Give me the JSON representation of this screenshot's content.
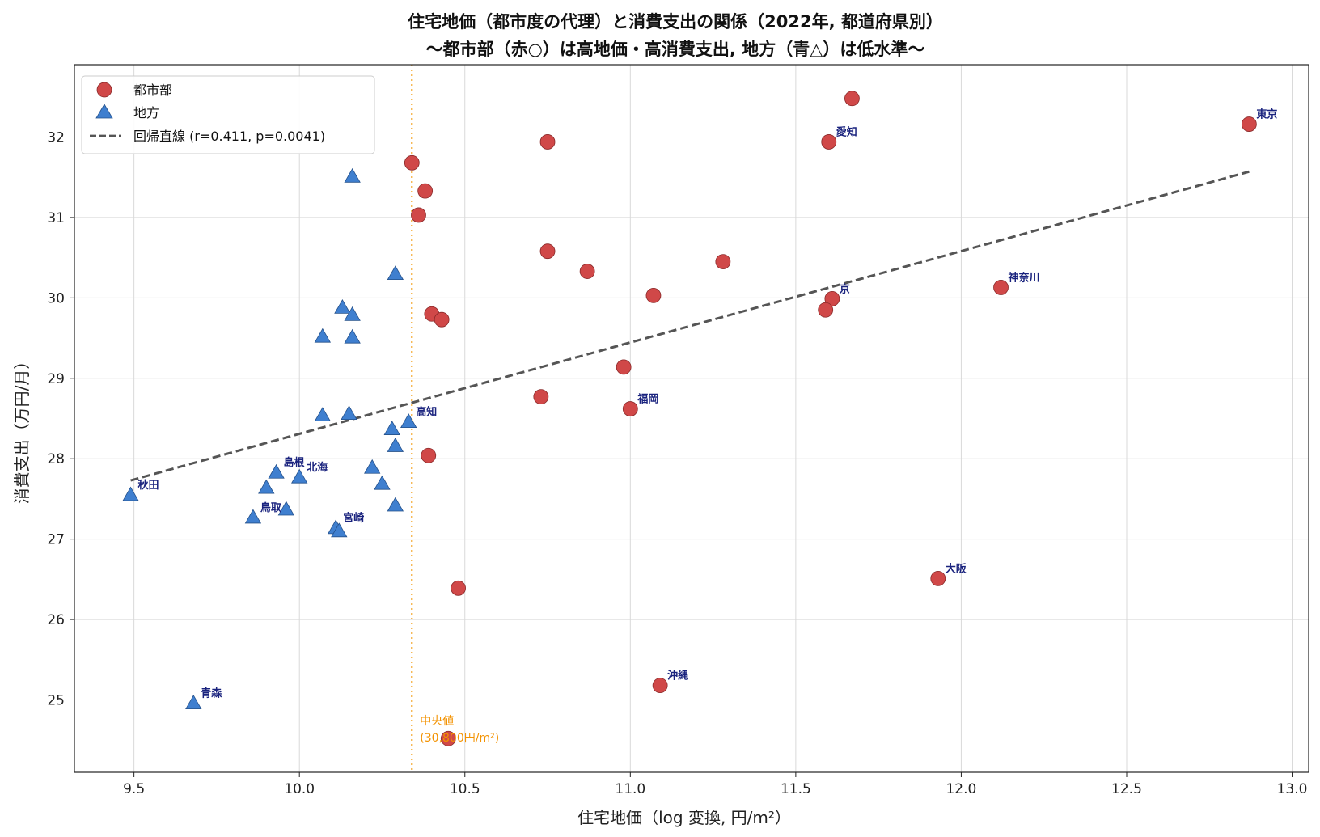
{
  "chart_data": {
    "type": "scatter",
    "title": "住宅地価（都市度の代理）と消費支出の関係（2022年, 都道府県別）",
    "subtitle": "〜都市部（赤○）は高地価・高消費支出, 地方（青△）は低水準〜",
    "xlabel": "住宅地価（log 変換, 円/m²）",
    "ylabel": "消費支出（万円/月）",
    "xlim": [
      9.32,
      13.05
    ],
    "ylim": [
      24.1,
      32.9
    ],
    "xticks": [
      9.5,
      10.0,
      10.5,
      11.0,
      11.5,
      12.0,
      12.5,
      13.0
    ],
    "yticks": [
      25,
      26,
      27,
      28,
      29,
      30,
      31,
      32
    ],
    "xtick_labels": [
      "9.5",
      "10.0",
      "10.5",
      "11.0",
      "11.5",
      "12.0",
      "12.5",
      "13.0"
    ],
    "ytick_labels": [
      "25",
      "26",
      "27",
      "28",
      "29",
      "30",
      "31",
      "32"
    ],
    "grid": true,
    "legend_position": "top-left",
    "colors": {
      "urban": "#d04848",
      "rural": "#3f7fcf",
      "regression": "#555555",
      "median": "#f39c12",
      "label": "#1a237e"
    },
    "series": [
      {
        "name": "都市部",
        "marker": "circle",
        "points": [
          {
            "x": 12.87,
            "y": 32.16,
            "label": "東京"
          },
          {
            "x": 11.67,
            "y": 32.48,
            "label": ""
          },
          {
            "x": 11.6,
            "y": 31.94,
            "label": "愛知"
          },
          {
            "x": 12.12,
            "y": 30.13,
            "label": "神奈川"
          },
          {
            "x": 11.61,
            "y": 29.99,
            "label": "京"
          },
          {
            "x": 11.59,
            "y": 29.85,
            "label": ""
          },
          {
            "x": 11.93,
            "y": 26.51,
            "label": "大阪"
          },
          {
            "x": 11.09,
            "y": 25.18,
            "label": "沖縄"
          },
          {
            "x": 11.0,
            "y": 28.62,
            "label": "福岡"
          },
          {
            "x": 11.28,
            "y": 30.45,
            "label": ""
          },
          {
            "x": 11.07,
            "y": 30.03,
            "label": ""
          },
          {
            "x": 10.98,
            "y": 29.14,
            "label": ""
          },
          {
            "x": 10.87,
            "y": 30.33,
            "label": ""
          },
          {
            "x": 10.75,
            "y": 31.94,
            "label": ""
          },
          {
            "x": 10.75,
            "y": 30.58,
            "label": ""
          },
          {
            "x": 10.73,
            "y": 28.77,
            "label": ""
          },
          {
            "x": 10.48,
            "y": 26.39,
            "label": ""
          },
          {
            "x": 10.45,
            "y": 24.52,
            "label": ""
          },
          {
            "x": 10.34,
            "y": 31.68,
            "label": ""
          },
          {
            "x": 10.38,
            "y": 31.33,
            "label": ""
          },
          {
            "x": 10.36,
            "y": 31.03,
            "label": ""
          },
          {
            "x": 10.4,
            "y": 29.8,
            "label": ""
          },
          {
            "x": 10.43,
            "y": 29.73,
            "label": ""
          },
          {
            "x": 10.39,
            "y": 28.04,
            "label": ""
          }
        ]
      },
      {
        "name": "地方",
        "marker": "triangle",
        "points": [
          {
            "x": 9.49,
            "y": 27.55,
            "label": "秋田"
          },
          {
            "x": 9.68,
            "y": 24.96,
            "label": "青森"
          },
          {
            "x": 9.86,
            "y": 27.27,
            "label": "鳥取"
          },
          {
            "x": 9.9,
            "y": 27.64,
            "label": ""
          },
          {
            "x": 9.93,
            "y": 27.83,
            "label": "島根"
          },
          {
            "x": 9.96,
            "y": 27.37,
            "label": ""
          },
          {
            "x": 10.0,
            "y": 27.77,
            "label": "北海"
          },
          {
            "x": 10.07,
            "y": 29.52,
            "label": ""
          },
          {
            "x": 10.07,
            "y": 28.54,
            "label": ""
          },
          {
            "x": 10.11,
            "y": 27.14,
            "label": "宮崎"
          },
          {
            "x": 10.12,
            "y": 27.1,
            "label": ""
          },
          {
            "x": 10.13,
            "y": 29.88,
            "label": ""
          },
          {
            "x": 10.15,
            "y": 28.56,
            "label": ""
          },
          {
            "x": 10.16,
            "y": 31.51,
            "label": ""
          },
          {
            "x": 10.16,
            "y": 29.79,
            "label": ""
          },
          {
            "x": 10.16,
            "y": 29.51,
            "label": ""
          },
          {
            "x": 10.22,
            "y": 27.89,
            "label": ""
          },
          {
            "x": 10.25,
            "y": 27.69,
            "label": ""
          },
          {
            "x": 10.28,
            "y": 28.37,
            "label": ""
          },
          {
            "x": 10.29,
            "y": 30.3,
            "label": ""
          },
          {
            "x": 10.29,
            "y": 28.16,
            "label": ""
          },
          {
            "x": 10.29,
            "y": 27.42,
            "label": ""
          },
          {
            "x": 10.33,
            "y": 28.46,
            "label": "高知"
          }
        ]
      }
    ],
    "regression": {
      "name": "回帰直線 (r=0.411, p=0.0041)",
      "x1": 9.49,
      "y1": 27.73,
      "x2": 12.87,
      "y2": 31.57
    },
    "median_line": {
      "x": 10.34,
      "label_line1": "中央値",
      "label_line2": "(30,800円/m²)"
    }
  }
}
